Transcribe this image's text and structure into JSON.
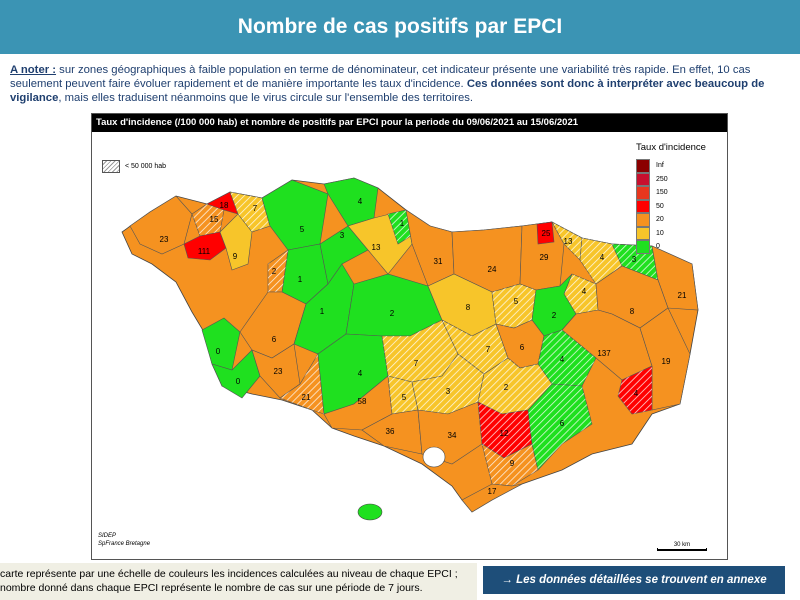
{
  "header": {
    "title": "Nombre de cas positifs par EPCI"
  },
  "note": {
    "lead": "A noter :",
    "text_line1": " sur zones géographiques à faible population en terme de dénominateur, cet indicateur présente une variabilité très rapide. En effet, 10 cas",
    "text_line2a": "seulement peuvent faire évoluer rapidement et de manière importante les taux d'incidence. ",
    "bold_a": "Ces données sont donc à interpréter avec beaucoup de",
    "bold_b": "vigilance",
    "text_line3": ", mais elles traduisent néanmoins que le virus circule sur l'ensemble des territoires."
  },
  "map": {
    "title": "Taux d'incidence (/100 000 hab) et nombre de positifs par EPCI pour la periode du 09/06/2021 au 15/06/2021",
    "hatch_label": "< 50 000 hab",
    "legend": {
      "title": "Taux d'incidence",
      "classes": [
        {
          "label": "Inf",
          "color": "#8b0000"
        },
        {
          "label": "250",
          "color": "#c8102e"
        },
        {
          "label": "150",
          "color": "#e8361e"
        },
        {
          "label": "50",
          "color": "#ff0000"
        },
        {
          "label": "20",
          "color": "#f59220"
        },
        {
          "label": "10",
          "color": "#f7c52a"
        },
        {
          "label": "0",
          "color": "#1fe01f"
        }
      ]
    },
    "source_line1": "SIDEP",
    "source_line2": "SpFrance Bretagne",
    "scale_label": "30 km",
    "epci_counts": [
      {
        "value": "23",
        "color": "#f59220",
        "hatched": false
      },
      {
        "value": "15",
        "color": "#f59220",
        "hatched": true
      },
      {
        "value": "18",
        "color": "#ff0000",
        "hatched": false
      },
      {
        "value": "111",
        "color": "#ff0000",
        "hatched": false
      },
      {
        "value": "9",
        "color": "#f7c52a",
        "hatched": false
      },
      {
        "value": "7",
        "color": "#f7c52a",
        "hatched": true
      },
      {
        "value": "5",
        "color": "#1fe01f",
        "hatched": false
      },
      {
        "value": "4",
        "color": "#1fe01f",
        "hatched": false
      },
      {
        "value": "1",
        "color": "#1fe01f",
        "hatched": false
      },
      {
        "value": "3",
        "color": "#1fe01f",
        "hatched": false
      },
      {
        "value": "13",
        "color": "#f7c52a",
        "hatched": false
      },
      {
        "value": "1",
        "color": "#1fe01f",
        "hatched": true
      },
      {
        "value": "2",
        "color": "#f59220",
        "hatched": true
      },
      {
        "value": "31",
        "color": "#f59220",
        "hatched": false
      },
      {
        "value": "24",
        "color": "#f59220",
        "hatched": false
      },
      {
        "value": "29",
        "color": "#f59220",
        "hatched": false
      },
      {
        "value": "25",
        "color": "#ff0000",
        "hatched": false
      },
      {
        "value": "13",
        "color": "#f7c52a",
        "hatched": true
      },
      {
        "value": "4",
        "color": "#f7c52a",
        "hatched": true
      },
      {
        "value": "4",
        "color": "#f7c52a",
        "hatched": true
      },
      {
        "value": "3",
        "color": "#1fe01f",
        "hatched": true
      },
      {
        "value": "21",
        "color": "#f59220",
        "hatched": false
      },
      {
        "value": "8",
        "color": "#f59220",
        "hatched": false
      },
      {
        "value": "0",
        "color": "#1fe01f",
        "hatched": false
      },
      {
        "value": "6",
        "color": "#f59220",
        "hatched": false
      },
      {
        "value": "1",
        "color": "#1fe01f",
        "hatched": false
      },
      {
        "value": "2",
        "color": "#1fe01f",
        "hatched": false
      },
      {
        "value": "8",
        "color": "#f7c52a",
        "hatched": false
      },
      {
        "value": "5",
        "color": "#f7c52a",
        "hatched": true
      },
      {
        "value": "2",
        "color": "#1fe01f",
        "hatched": false
      },
      {
        "value": "137",
        "color": "#f59220",
        "hatched": false
      },
      {
        "value": "19",
        "color": "#f59220",
        "hatched": false
      },
      {
        "value": "0",
        "color": "#1fe01f",
        "hatched": false
      },
      {
        "value": "23",
        "color": "#f59220",
        "hatched": false
      },
      {
        "value": "21",
        "color": "#f59220",
        "hatched": true
      },
      {
        "value": "4",
        "color": "#1fe01f",
        "hatched": false
      },
      {
        "value": "7",
        "color": "#f7c52a",
        "hatched": true
      },
      {
        "value": "7",
        "color": "#f7c52a",
        "hatched": true
      },
      {
        "value": "6",
        "color": "#f59220",
        "hatched": false
      },
      {
        "value": "4",
        "color": "#1fe01f",
        "hatched": true
      },
      {
        "value": "4",
        "color": "#ff0000",
        "hatched": true
      },
      {
        "value": "58",
        "color": "#f59220",
        "hatched": false
      },
      {
        "value": "5",
        "color": "#f7c52a",
        "hatched": true
      },
      {
        "value": "3",
        "color": "#f7c52a",
        "hatched": true
      },
      {
        "value": "2",
        "color": "#f7c52a",
        "hatched": true
      },
      {
        "value": "36",
        "color": "#f59220",
        "hatched": false
      },
      {
        "value": "34",
        "color": "#f59220",
        "hatched": false
      },
      {
        "value": "12",
        "color": "#ff0000",
        "hatched": true
      },
      {
        "value": "9",
        "color": "#f59220",
        "hatched": true
      },
      {
        "value": "17",
        "color": "#f59220",
        "hatched": false
      },
      {
        "value": "6",
        "color": "#1fe01f",
        "hatched": true
      }
    ]
  },
  "footer": {
    "line1": "carte représente par une échelle de couleurs les incidences calculées au niveau de chaque EPCI ;",
    "line2": "nombre donné dans chaque EPCI représente le nombre de cas sur une période de 7 jours."
  },
  "annex_button": {
    "label": "→ Les données détaillées se trouvent en annexe"
  }
}
